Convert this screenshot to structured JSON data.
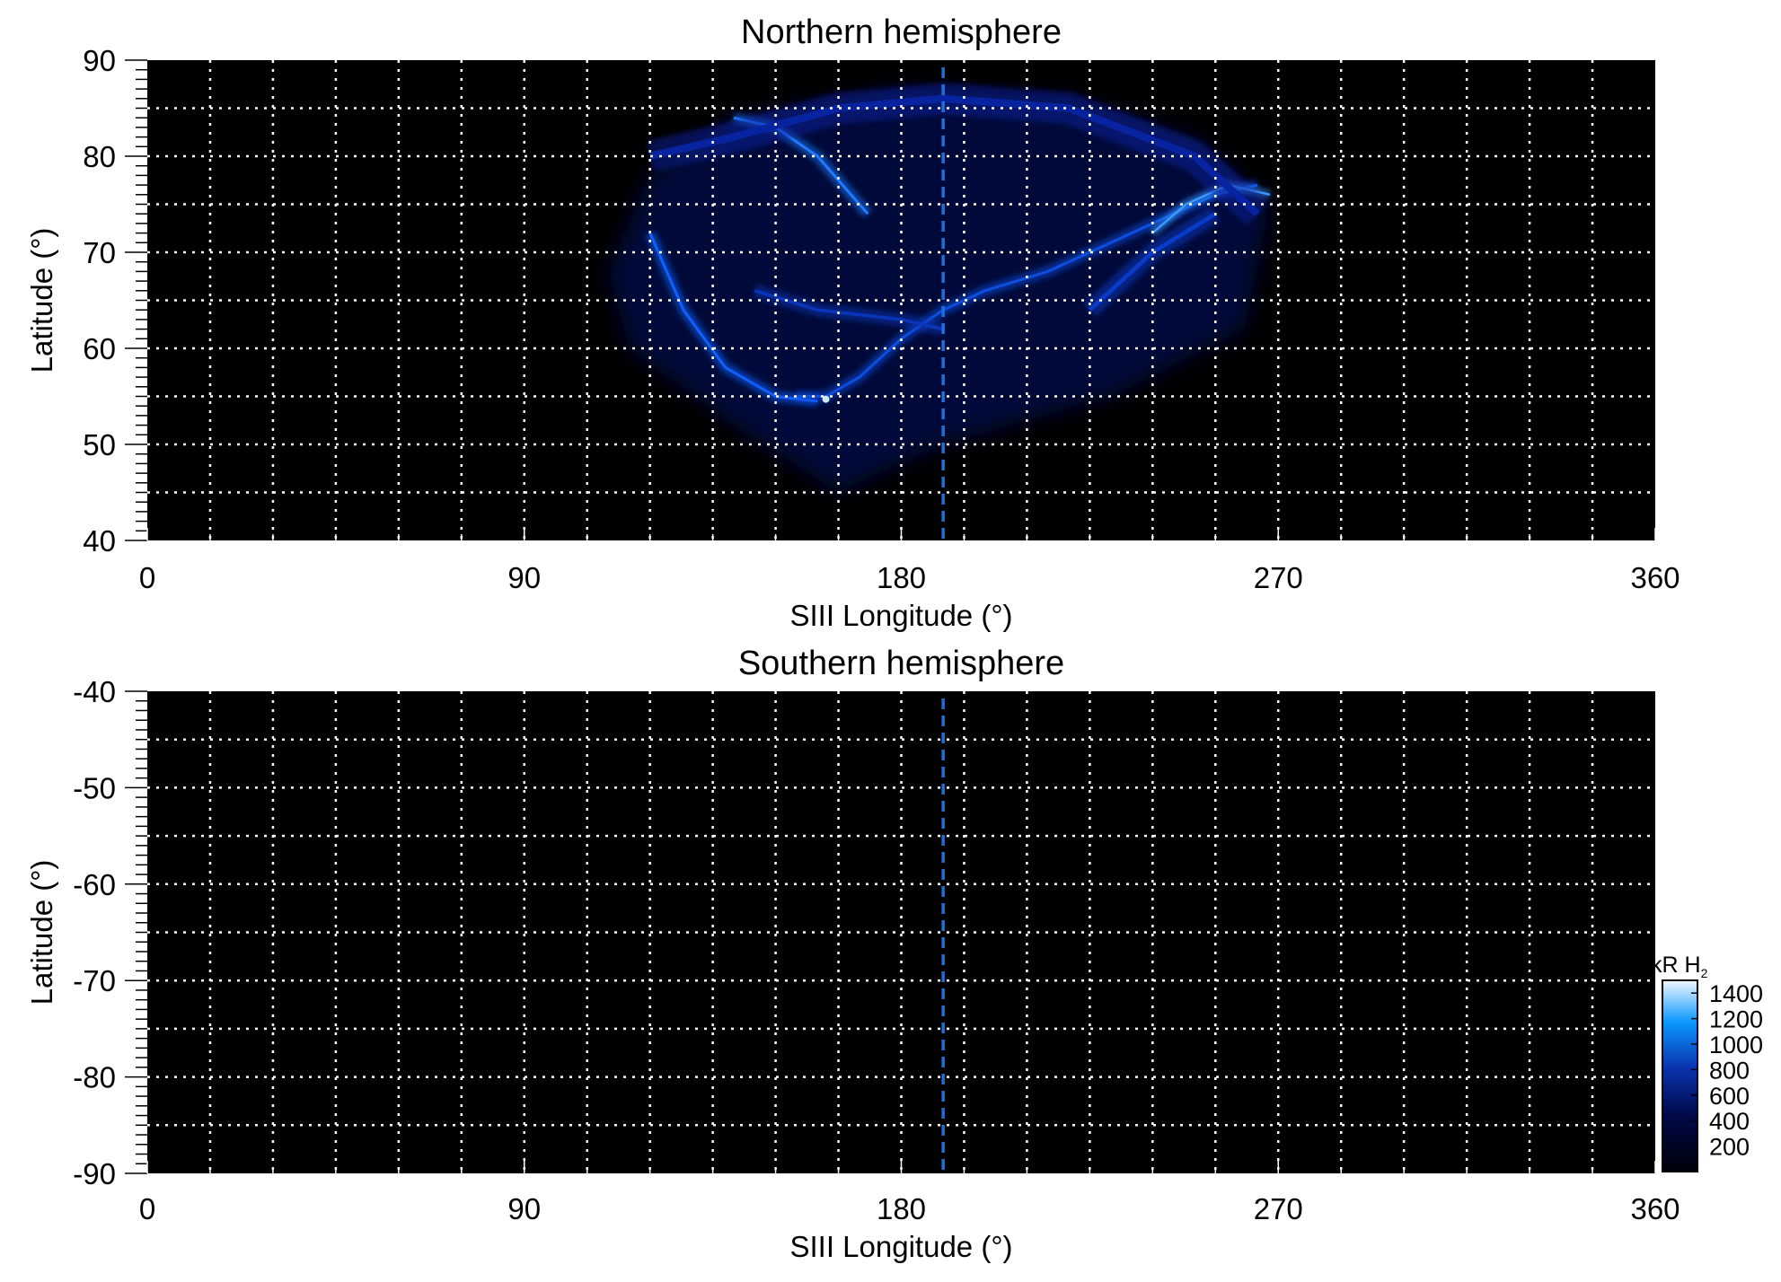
{
  "chart_data": [
    {
      "type": "heatmap",
      "title": "Northern hemisphere",
      "xlabel": "SIII Longitude (°)",
      "ylabel": "Latitude (°)",
      "xlim": [
        0,
        360
      ],
      "ylim": [
        40,
        90
      ],
      "xticks": [
        "0",
        "90",
        "180",
        "270",
        "360"
      ],
      "yticks": [
        "90",
        "80",
        "70",
        "60",
        "50",
        "40"
      ],
      "grid": true,
      "grid_step": {
        "x": 15,
        "y": 5
      },
      "reference_line_longitude": 190,
      "reference_line_color": "#1e6fd9",
      "content": "auroral emission oval, approx. longitude 110–275, latitude 50–87"
    },
    {
      "type": "heatmap",
      "title": "Southern hemisphere",
      "xlabel": "SIII Longitude (°)",
      "ylabel": "Latitude (°)",
      "xlim": [
        0,
        360
      ],
      "ylim": [
        -90,
        -40
      ],
      "xticks": [
        "0",
        "90",
        "180",
        "270",
        "360"
      ],
      "yticks": [
        "-40",
        "-50",
        "-60",
        "-70",
        "-80",
        "-90"
      ],
      "grid": true,
      "grid_step": {
        "x": 15,
        "y": 5
      },
      "reference_line_longitude": 190,
      "reference_line_color": "#1e6fd9",
      "content": "no emission"
    }
  ],
  "colorbar": {
    "label": "kR H",
    "label_subscript": "2",
    "range": [
      0,
      1500
    ],
    "ticks": [
      "1400",
      "1200",
      "1000",
      "800",
      "600",
      "400",
      "200"
    ],
    "colors": [
      "#000008",
      "#000a4a",
      "#0a2fa8",
      "#0a8cff",
      "#f0f8ff"
    ]
  }
}
